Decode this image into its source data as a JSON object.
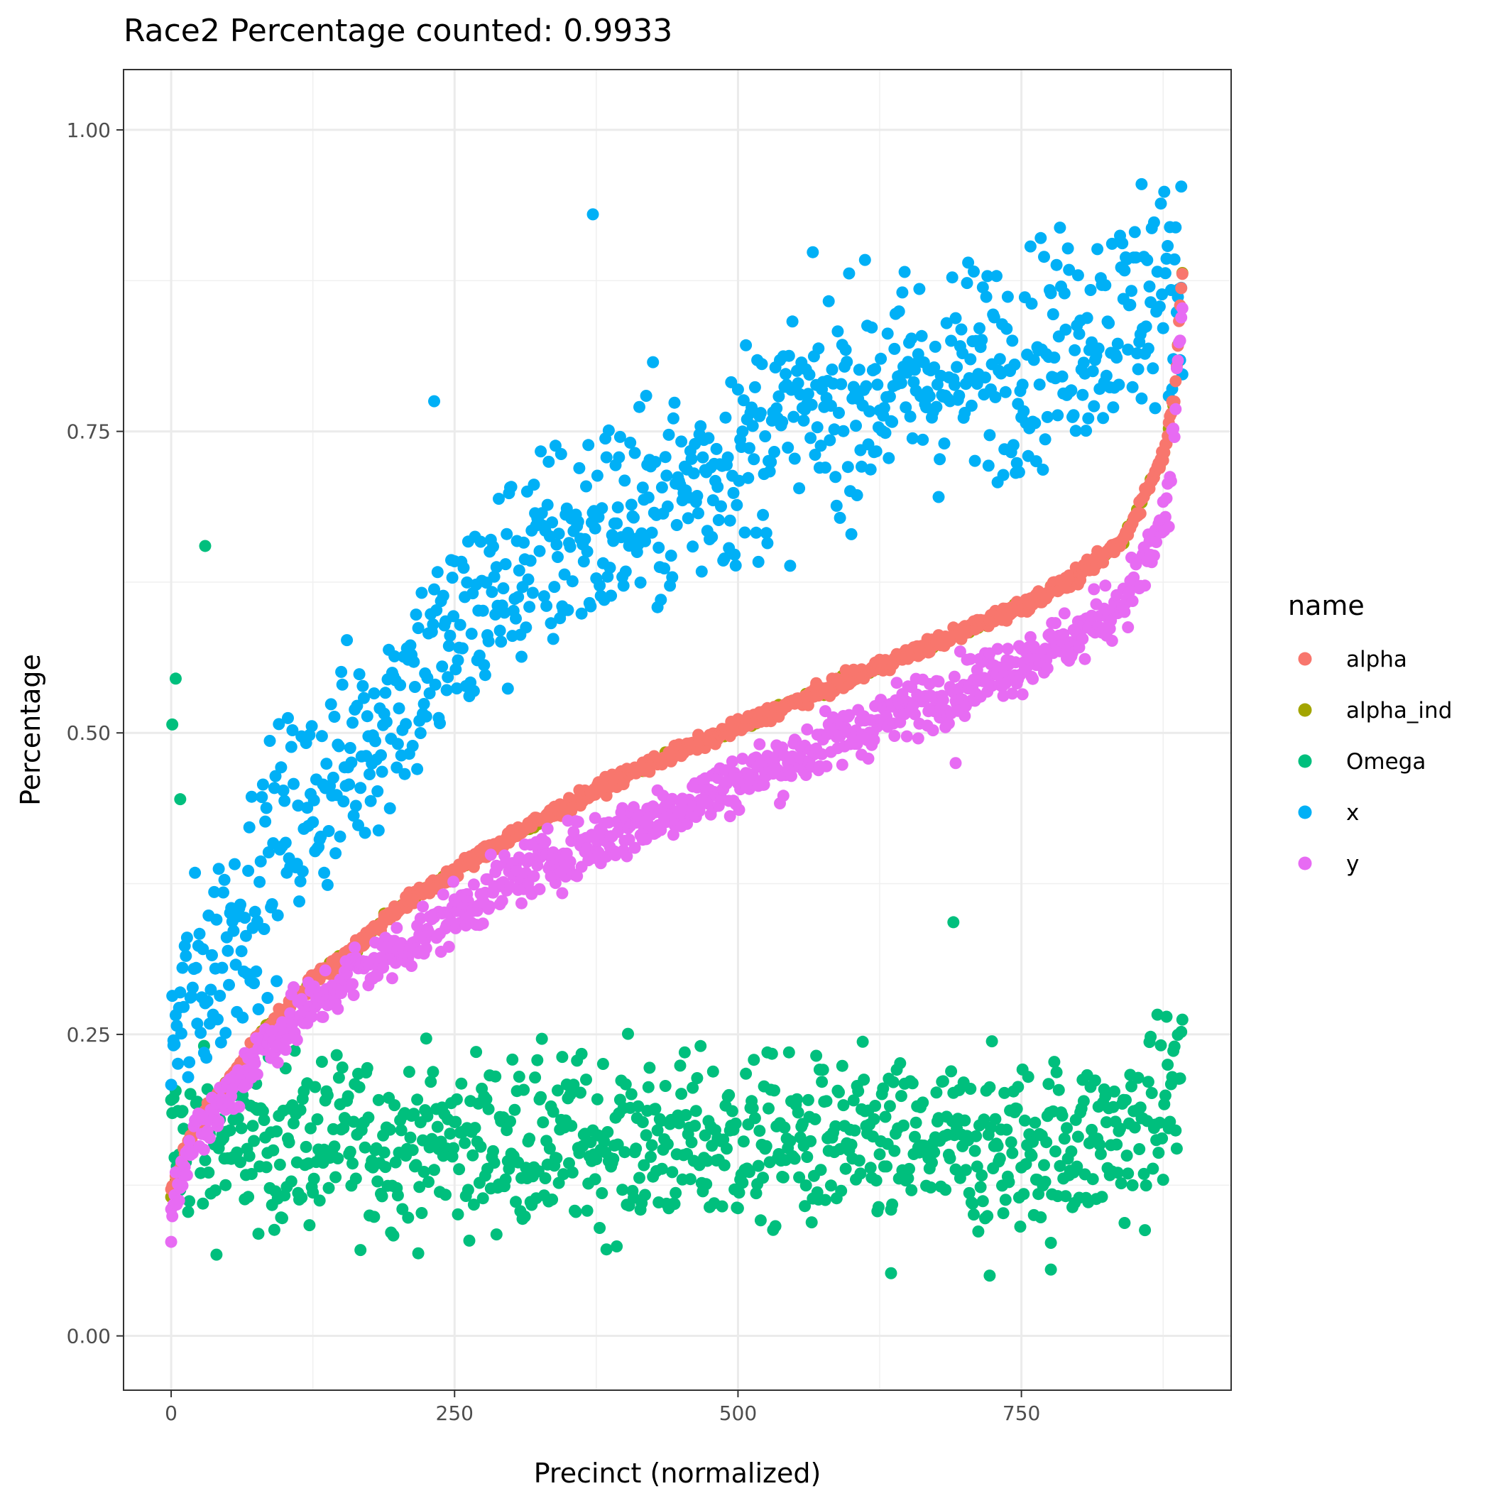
{
  "chart_data": {
    "type": "scatter",
    "title": "Race2 Percentage counted: 0.9933",
    "xlabel": "Precinct (normalized)",
    "ylabel": "Percentage",
    "xlim": [
      -42,
      935
    ],
    "ylim": [
      -0.045,
      1.05
    ],
    "x_ticks": [
      0,
      250,
      500,
      750
    ],
    "x_tick_labels": [
      "0",
      "250",
      "500",
      "750"
    ],
    "y_ticks": [
      0,
      0.25,
      0.5,
      0.75,
      1.0
    ],
    "y_tick_labels": [
      "0.00",
      "0.25",
      "0.50",
      "0.75",
      "1.00"
    ],
    "grid": true,
    "n_precincts": 893,
    "legend": {
      "title": "name",
      "placement": "right",
      "entries": [
        "alpha",
        "alpha_ind",
        "Omega",
        "x",
        "y"
      ]
    },
    "series": [
      {
        "name": "alpha",
        "color": "#F8766D",
        "trend": [
          [
            0,
            0.12
          ],
          [
            20,
            0.17
          ],
          [
            50,
            0.21
          ],
          [
            80,
            0.25
          ],
          [
            120,
            0.29
          ],
          [
            160,
            0.32
          ],
          [
            200,
            0.355
          ],
          [
            250,
            0.385
          ],
          [
            300,
            0.415
          ],
          [
            350,
            0.44
          ],
          [
            400,
            0.465
          ],
          [
            450,
            0.485
          ],
          [
            500,
            0.505
          ],
          [
            550,
            0.525
          ],
          [
            600,
            0.545
          ],
          [
            650,
            0.565
          ],
          [
            700,
            0.585
          ],
          [
            750,
            0.605
          ],
          [
            800,
            0.63
          ],
          [
            840,
            0.66
          ],
          [
            860,
            0.7
          ],
          [
            875,
            0.73
          ],
          [
            885,
            0.78
          ],
          [
            892,
            0.88
          ]
        ],
        "spread": 0.003
      },
      {
        "name": "alpha_ind",
        "color": "#A3A500",
        "trend": [
          [
            0,
            0.12
          ],
          [
            20,
            0.17
          ],
          [
            50,
            0.21
          ],
          [
            80,
            0.25
          ],
          [
            120,
            0.29
          ],
          [
            160,
            0.32
          ],
          [
            200,
            0.355
          ],
          [
            250,
            0.385
          ],
          [
            300,
            0.415
          ],
          [
            350,
            0.44
          ],
          [
            400,
            0.465
          ],
          [
            450,
            0.485
          ],
          [
            500,
            0.505
          ],
          [
            550,
            0.525
          ],
          [
            600,
            0.545
          ],
          [
            650,
            0.565
          ],
          [
            700,
            0.585
          ],
          [
            750,
            0.605
          ],
          [
            800,
            0.63
          ],
          [
            840,
            0.66
          ],
          [
            860,
            0.7
          ],
          [
            875,
            0.73
          ],
          [
            885,
            0.78
          ],
          [
            892,
            0.88
          ]
        ],
        "spread": 0.002
      },
      {
        "name": "Omega",
        "color": "#00BF7D",
        "trend": [
          [
            0,
            0.16
          ],
          [
            100,
            0.16
          ],
          [
            300,
            0.16
          ],
          [
            500,
            0.16
          ],
          [
            700,
            0.155
          ],
          [
            800,
            0.16
          ],
          [
            860,
            0.17
          ],
          [
            892,
            0.22
          ]
        ],
        "spread": 0.035
      },
      {
        "name": "x",
        "color": "#00B0F6",
        "trend": [
          [
            0,
            0.25
          ],
          [
            50,
            0.33
          ],
          [
            100,
            0.42
          ],
          [
            150,
            0.47
          ],
          [
            200,
            0.53
          ],
          [
            250,
            0.58
          ],
          [
            300,
            0.63
          ],
          [
            350,
            0.66
          ],
          [
            400,
            0.68
          ],
          [
            450,
            0.7
          ],
          [
            500,
            0.73
          ],
          [
            550,
            0.76
          ],
          [
            600,
            0.78
          ],
          [
            650,
            0.79
          ],
          [
            700,
            0.8
          ],
          [
            750,
            0.81
          ],
          [
            800,
            0.83
          ],
          [
            850,
            0.85
          ],
          [
            892,
            0.87
          ]
        ],
        "spread": 0.045
      },
      {
        "name": "y",
        "color": "#E76BF3",
        "trend": [
          [
            0,
            0.12
          ],
          [
            20,
            0.16
          ],
          [
            50,
            0.2
          ],
          [
            80,
            0.24
          ],
          [
            120,
            0.27
          ],
          [
            160,
            0.3
          ],
          [
            200,
            0.32
          ],
          [
            250,
            0.35
          ],
          [
            300,
            0.38
          ],
          [
            350,
            0.4
          ],
          [
            400,
            0.42
          ],
          [
            450,
            0.44
          ],
          [
            500,
            0.46
          ],
          [
            550,
            0.48
          ],
          [
            600,
            0.5
          ],
          [
            650,
            0.52
          ],
          [
            700,
            0.54
          ],
          [
            750,
            0.56
          ],
          [
            800,
            0.58
          ],
          [
            840,
            0.61
          ],
          [
            860,
            0.64
          ],
          [
            880,
            0.69
          ],
          [
            892,
            0.86
          ]
        ],
        "spread": 0.012
      }
    ],
    "outliers": [
      {
        "series": "x",
        "x": 372,
        "y": 0.93
      },
      {
        "series": "x",
        "x": 232,
        "y": 0.775
      },
      {
        "series": "x",
        "x": 856,
        "y": 0.955
      },
      {
        "series": "x",
        "x": 891,
        "y": 0.953
      },
      {
        "series": "x",
        "x": 2,
        "y": 0.245
      },
      {
        "series": "Omega",
        "x": 30,
        "y": 0.655
      },
      {
        "series": "Omega",
        "x": 4,
        "y": 0.545
      },
      {
        "series": "Omega",
        "x": 1,
        "y": 0.507
      },
      {
        "series": "Omega",
        "x": 8,
        "y": 0.445
      },
      {
        "series": "Omega",
        "x": 690,
        "y": 0.343
      },
      {
        "series": "Omega",
        "x": 635,
        "y": 0.052
      },
      {
        "series": "Omega",
        "x": 722,
        "y": 0.05
      },
      {
        "series": "Omega",
        "x": 776,
        "y": 0.055
      },
      {
        "series": "y",
        "x": 0,
        "y": 0.078
      },
      {
        "series": "y",
        "x": 692,
        "y": 0.475
      }
    ]
  }
}
